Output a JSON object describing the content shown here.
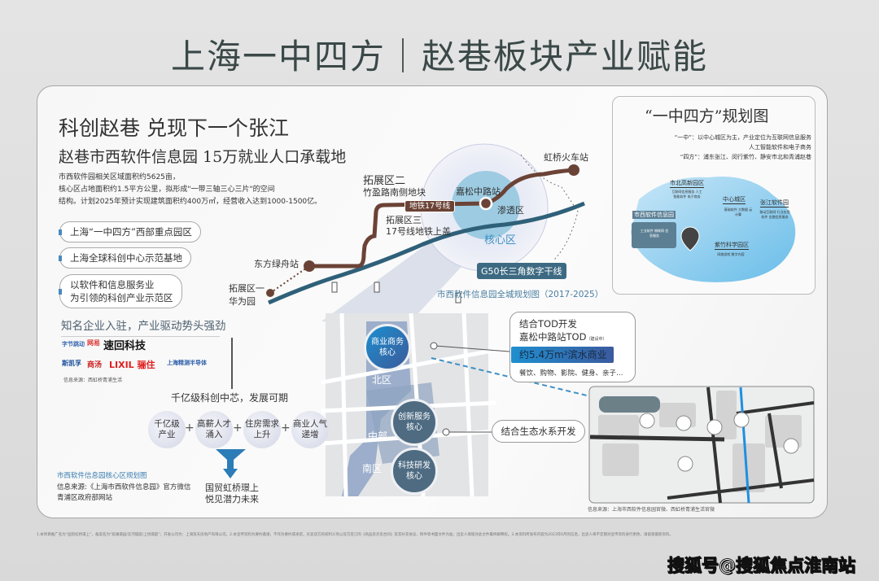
{
  "title": "上海一中四方｜赵巷板块产业赋能",
  "left": {
    "heading": "科创赵巷  兑现下一个张江",
    "subheading": "赵巷市西软件信息园  15万就业人口承载地",
    "desc": [
      "市西软件园相关区域面积约5625亩，",
      "核心区占地面积约1.5平方公里，拟形成\"一带三轴三心三片\"的空间",
      "结构。计划2025年预计实现建筑面积约400万㎡，经营收入达到1000-1500亿。"
    ],
    "bullets": [
      "上海“一中四方”西部重点园区",
      "上海全球科创中心示范基地",
      "以软件和信息服务业",
      "为引领的科创产业示范区"
    ],
    "companies_heading": "知名企业入驻，产业驱动势头强劲",
    "logos": [
      "字节跳动",
      "网易",
      "速回科技",
      "斯凯孚",
      "商汤",
      "LIXIL 骊住",
      "上海精测半导体"
    ],
    "companies_source": "信息来源：西虹桥青浦生活",
    "growth_title": "千亿级科创中芯，发展可期",
    "factors": [
      [
        "千亿级",
        "产业"
      ],
      [
        "高薪人才",
        "涌入"
      ],
      [
        "住房需求",
        "上升"
      ],
      [
        "商业人气",
        "递增"
      ]
    ],
    "result": [
      "国贸虹桥璟上",
      "悦见潜力未来"
    ],
    "map_caption": "市西软件信息园核心区规划图",
    "source_1": "信息来源:《上海市西软件信息园》官方微信",
    "source_2": "青浦区政府部网站"
  },
  "map": {
    "hongqiao": "虹桥火车站",
    "ext2": "拓展区二",
    "ext2_sub": "竹盈路南侧地块",
    "line17": "地铁17号线",
    "jiasong": "嘉松中路站",
    "seep": "渗透区",
    "ext3": "拓展区三",
    "ext3_sub": "17号线地铁上盖",
    "core": "核心区",
    "dongfang": "东方绿舟站",
    "ext1": "拓展区一",
    "ext1_sub": "华为园",
    "g50": "G50长三角数字干线",
    "caption": "市西软件信息园全城规划图（2017-2025）",
    "north": "北区",
    "middle": "中部",
    "south": "南区",
    "core_business": [
      "商业商务",
      "核心"
    ],
    "core_innovation": [
      "创新服务",
      "核心"
    ],
    "core_tech": [
      "科技研发",
      "核心"
    ],
    "colors": {
      "metro": "#6b4336",
      "g50": "#2f6079",
      "accent": "#3f8fc4"
    }
  },
  "tod": {
    "l1": "结合TOD开发",
    "l2": "嘉松中路站TOD",
    "tag": "（建设中）",
    "bar": "约5.4万m²滨水商业",
    "items": "餐饮、购物、影院、健身、亲子…"
  },
  "eco": "结合生态水系开发",
  "detail_map_source": "信息来源：上海市西软件信息园官微、西虹桥青浦生活官微",
  "inset": {
    "title": "“一中四方”规划图",
    "l1": "“一中”：以中心城区为主，产业定位为互联网信息服务",
    "l2": "人工智能软件和电子商务",
    "l3": "“四方”：浦东张江、闵行紫竹、静安市北和青浦赵巷",
    "areas": [
      {
        "name": "市北高新园区",
        "desc": "互联网信息服务 人工智能软件 电子商务"
      },
      {
        "name": "中心城区",
        "desc": "基础软件 大数据 云计算"
      },
      {
        "name": "张江软件园",
        "desc": "移动互联网 行业应用软件 金融信息服务"
      },
      {
        "name": "市西软件信息园",
        "desc": "工业软件 物联网 信息服务"
      },
      {
        "name": "紫竹科学园区",
        "desc": "网络游戏 数字内容"
      }
    ]
  },
  "footer": "1.本项目推广名为“国贸虹桥璟上”，备案名为“观澜璟园/云河璟庭/上悦璟庭”；开发公司为：上海贸天房地产有限公司。2.本宣传资料为要约邀请，不作为要约或承诺，买卖双方的权利义务以双方签订的《商品房买卖合同》及其补充协议、附件等书面文件为准；出卖人保留对此文件最终解释权。3.本资料所发布内容为2023年6月的信息，出卖人将不定期对宣传资料进行更改，请留意最新资料。",
  "watermark": "搜狐号@搜狐焦点淮南站"
}
